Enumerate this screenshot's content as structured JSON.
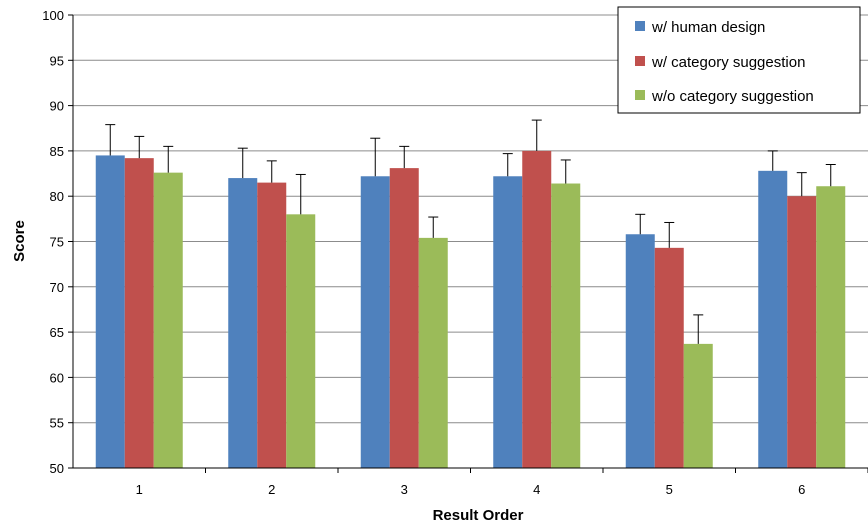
{
  "chart_data": {
    "type": "bar",
    "categories": [
      "1",
      "2",
      "3",
      "4",
      "5",
      "6"
    ],
    "series": [
      {
        "name": "w/ human design",
        "color": "#4f81bd",
        "values": [
          84.5,
          82.0,
          82.2,
          82.2,
          75.8,
          82.8
        ],
        "errors": [
          3.4,
          3.3,
          4.2,
          2.5,
          2.2,
          2.2
        ]
      },
      {
        "name": "w/ category suggestion",
        "color": "#c0504d",
        "values": [
          84.2,
          81.5,
          83.1,
          85.0,
          74.3,
          80.0
        ],
        "errors": [
          2.4,
          2.4,
          2.4,
          3.4,
          2.8,
          2.6
        ]
      },
      {
        "name": "w/o category suggestion",
        "color": "#9bbb59",
        "values": [
          82.6,
          78.0,
          75.4,
          81.4,
          63.7,
          81.1
        ],
        "errors": [
          2.9,
          4.4,
          2.3,
          2.6,
          3.2,
          2.4
        ]
      }
    ],
    "xlabel": "Result Order",
    "ylabel": "Score",
    "ylim": [
      50,
      100
    ],
    "yticks": [
      "50",
      "55",
      "60",
      "65",
      "70",
      "75",
      "80",
      "85",
      "90",
      "95",
      "100"
    ],
    "grid": true,
    "legend_position": "top-right"
  }
}
